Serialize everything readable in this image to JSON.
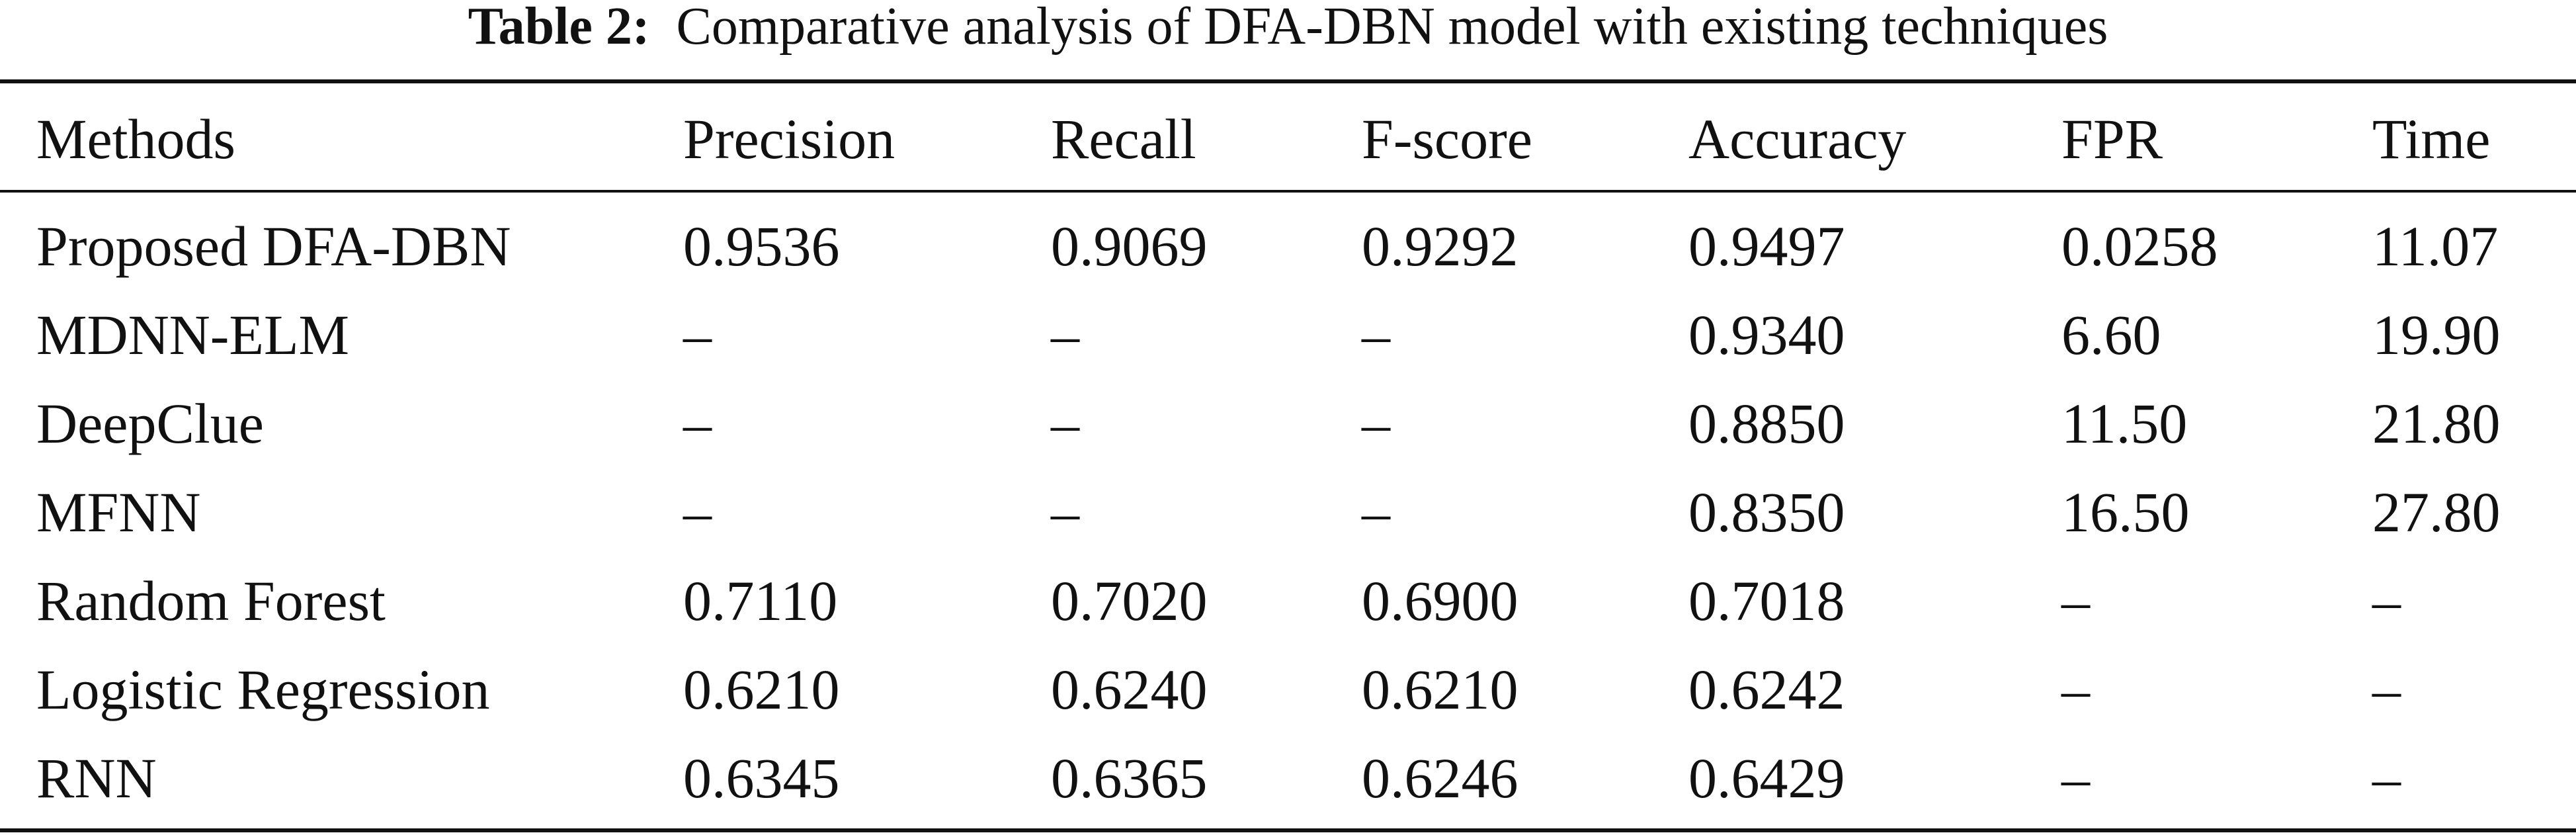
{
  "caption": {
    "label": "Table 2:",
    "text": "Comparative analysis of DFA-DBN model with existing techniques"
  },
  "table": {
    "columns": [
      "Methods",
      "Precision",
      "Recall",
      "F-score",
      "Accuracy",
      "FPR",
      "Time"
    ],
    "rows": [
      [
        "Proposed DFA-DBN",
        "0.9536",
        "0.9069",
        "0.9292",
        "0.9497",
        "0.0258",
        "11.07"
      ],
      [
        "MDNN-ELM",
        "–",
        "–",
        "–",
        "0.9340",
        "6.60",
        "19.90"
      ],
      [
        "DeepClue",
        "–",
        "–",
        "–",
        "0.8850",
        "11.50",
        "21.80"
      ],
      [
        "MFNN",
        "–",
        "–",
        "–",
        "0.8350",
        "16.50",
        "27.80"
      ],
      [
        "Random Forest",
        "0.7110",
        "0.7020",
        "0.6900",
        "0.7018",
        "–",
        "–"
      ],
      [
        "Logistic Regression",
        "0.6210",
        "0.6240",
        "0.6210",
        "0.6242",
        "–",
        "–"
      ],
      [
        "RNN",
        "0.6345",
        "0.6365",
        "0.6246",
        "0.6429",
        "–",
        "–"
      ]
    ]
  }
}
